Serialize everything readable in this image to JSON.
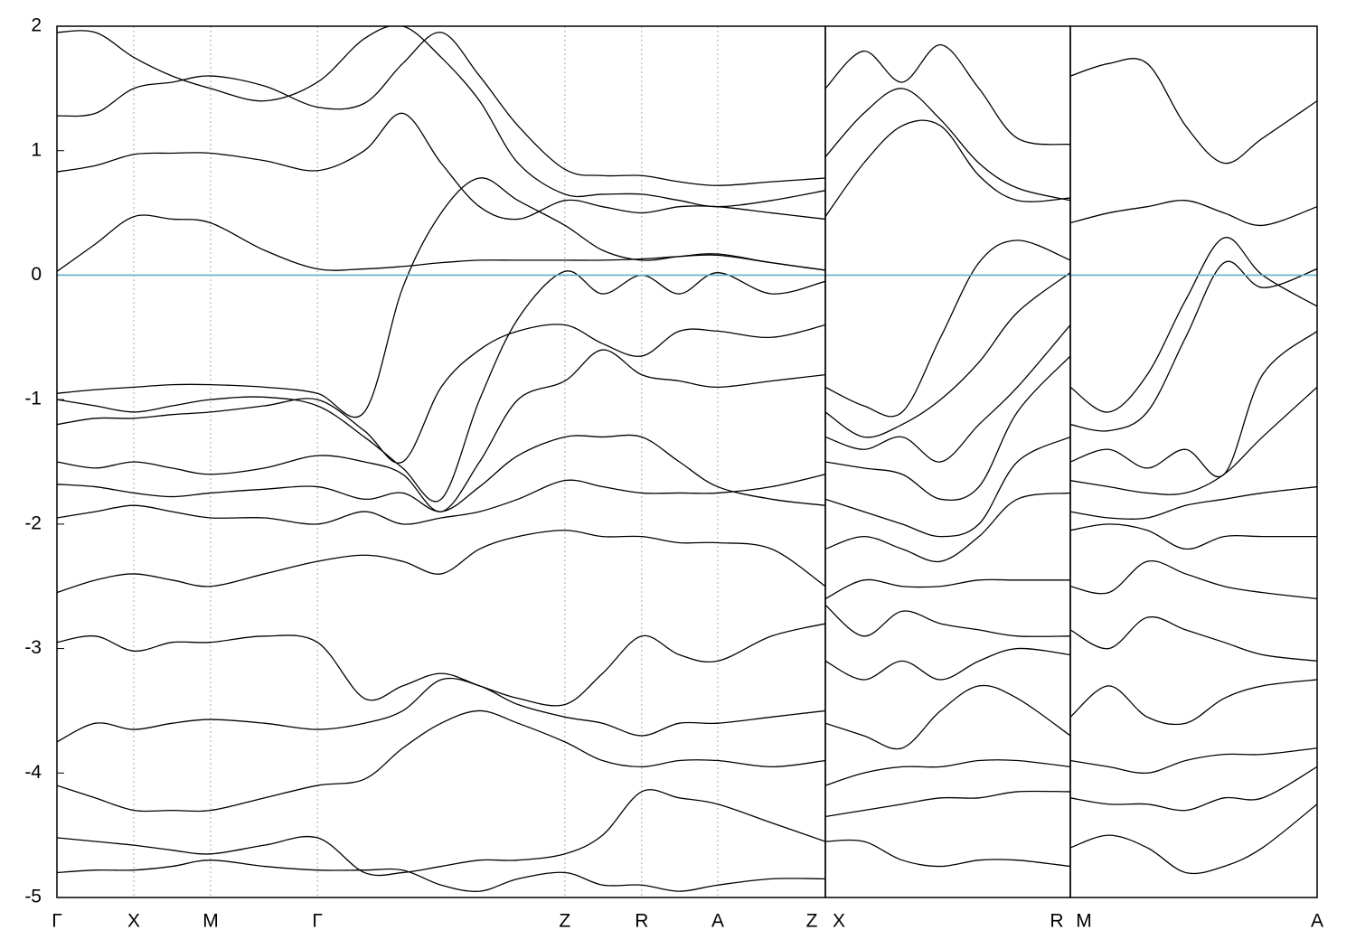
{
  "chart_data": [
    {
      "type": "line",
      "line_color": "#000000",
      "fermi_level": 0,
      "fermi_color": "#5fb3c8",
      "xgrid": true,
      "xlim": [
        0,
        10.0
      ],
      "ylim": [
        -5,
        2
      ],
      "yticks": [
        -5,
        -4,
        -3,
        -2,
        -1,
        0,
        1,
        2
      ],
      "xticks": [
        {
          "value": 0,
          "label": "Γ"
        },
        {
          "value": 1,
          "label": "X"
        },
        {
          "value": 2,
          "label": "M"
        },
        {
          "value": 3.39,
          "label": "Γ"
        },
        {
          "value": 6.61,
          "label": "Z"
        },
        {
          "value": 7.61,
          "label": "R"
        },
        {
          "value": 8.6,
          "label": "A"
        },
        {
          "value": 10.0,
          "label": "Z"
        }
      ],
      "x": [
        0,
        0.5,
        1,
        1.5,
        2,
        2.7,
        3.39,
        4,
        4.5,
        5,
        5.5,
        6,
        6.61,
        7.1,
        7.61,
        8.1,
        8.6,
        9.3,
        10
      ],
      "series": [
        {
          "values": [
            0.03,
            0.25,
            0.47,
            0.45,
            0.42,
            0.2,
            0.05,
            0.05,
            0.07,
            0.1,
            0.12,
            0.12,
            0.12,
            0.12,
            0.13,
            0.15,
            0.16,
            0.1,
            0.04
          ]
        },
        {
          "values": [
            0.83,
            0.88,
            0.97,
            0.98,
            0.98,
            0.92,
            0.84,
            1.0,
            1.3,
            0.9,
            0.55,
            0.45,
            0.6,
            0.55,
            0.5,
            0.55,
            0.55,
            0.5,
            0.45
          ]
        },
        {
          "values": [
            1.28,
            1.3,
            1.5,
            1.55,
            1.6,
            1.52,
            1.35,
            1.38,
            1.7,
            1.95,
            1.6,
            1.2,
            0.85,
            0.8,
            0.8,
            0.75,
            0.72,
            0.75,
            0.78
          ]
        },
        {
          "values": [
            1.95,
            1.95,
            1.75,
            1.6,
            1.5,
            1.4,
            1.55,
            1.9,
            2.0,
            1.75,
            1.4,
            0.9,
            0.65,
            0.65,
            0.65,
            0.6,
            0.55,
            0.6,
            0.68
          ]
        },
        {
          "values": [
            -0.95,
            -0.92,
            -0.9,
            -0.88,
            -0.88,
            -0.9,
            -0.95,
            -1.1,
            -0.1,
            0.5,
            0.78,
            0.6,
            0.4,
            0.2,
            0.12,
            0.15,
            0.17,
            0.1,
            0.04
          ]
        },
        {
          "values": [
            -1.2,
            -1.15,
            -1.15,
            -1.12,
            -1.1,
            -1.05,
            -1.0,
            -1.25,
            -1.5,
            -0.9,
            -0.6,
            -0.45,
            -0.4,
            -0.55,
            -0.65,
            -0.45,
            -0.45,
            -0.5,
            -0.4
          ]
        },
        {
          "values": [
            -1.0,
            -1.05,
            -1.1,
            -1.05,
            -1.0,
            -0.98,
            -1.05,
            -1.3,
            -1.55,
            -1.8,
            -1.0,
            -0.35,
            0.03,
            -0.15,
            0.0,
            -0.15,
            0.02,
            -0.15,
            -0.05
          ]
        },
        {
          "values": [
            -1.5,
            -1.55,
            -1.5,
            -1.55,
            -1.6,
            -1.55,
            -1.45,
            -1.5,
            -1.6,
            -1.9,
            -1.5,
            -1.0,
            -0.85,
            -0.6,
            -0.8,
            -0.85,
            -0.9,
            -0.85,
            -0.8
          ]
        },
        {
          "values": [
            -1.68,
            -1.7,
            -1.75,
            -1.78,
            -1.75,
            -1.72,
            -1.7,
            -1.8,
            -1.75,
            -1.9,
            -1.7,
            -1.45,
            -1.3,
            -1.3,
            -1.3,
            -1.5,
            -1.7,
            -1.8,
            -1.85
          ]
        },
        {
          "values": [
            -1.95,
            -1.9,
            -1.85,
            -1.9,
            -1.95,
            -1.95,
            -2.0,
            -1.9,
            -2.0,
            -1.95,
            -1.9,
            -1.8,
            -1.65,
            -1.7,
            -1.75,
            -1.75,
            -1.75,
            -1.7,
            -1.6
          ]
        },
        {
          "values": [
            -2.55,
            -2.45,
            -2.4,
            -2.45,
            -2.5,
            -2.4,
            -2.3,
            -2.25,
            -2.3,
            -2.4,
            -2.2,
            -2.1,
            -2.05,
            -2.1,
            -2.1,
            -2.15,
            -2.15,
            -2.2,
            -2.5
          ]
        },
        {
          "values": [
            -2.95,
            -2.9,
            -3.02,
            -2.95,
            -2.95,
            -2.9,
            -2.95,
            -3.4,
            -3.3,
            -3.2,
            -3.3,
            -3.4,
            -3.45,
            -3.2,
            -2.9,
            -3.05,
            -3.1,
            -2.9,
            -2.8
          ]
        },
        {
          "values": [
            -3.75,
            -3.6,
            -3.65,
            -3.6,
            -3.57,
            -3.6,
            -3.65,
            -3.6,
            -3.5,
            -3.25,
            -3.3,
            -3.45,
            -3.55,
            -3.6,
            -3.7,
            -3.6,
            -3.6,
            -3.55,
            -3.5
          ]
        },
        {
          "values": [
            -4.1,
            -4.2,
            -4.3,
            -4.3,
            -4.3,
            -4.2,
            -4.1,
            -4.05,
            -3.8,
            -3.6,
            -3.5,
            -3.6,
            -3.75,
            -3.9,
            -3.95,
            -3.9,
            -3.9,
            -3.95,
            -3.9
          ]
        },
        {
          "values": [
            -4.52,
            -4.55,
            -4.58,
            -4.62,
            -4.65,
            -4.58,
            -4.52,
            -4.8,
            -4.8,
            -4.75,
            -4.7,
            -4.7,
            -4.65,
            -4.5,
            -4.15,
            -4.2,
            -4.25,
            -4.4,
            -4.55
          ]
        },
        {
          "values": [
            -4.8,
            -4.78,
            -4.78,
            -4.75,
            -4.7,
            -4.75,
            -4.78,
            -4.78,
            -4.78,
            -4.9,
            -4.95,
            -4.85,
            -4.8,
            -4.9,
            -4.9,
            -4.95,
            -4.9,
            -4.85,
            -4.85
          ]
        }
      ]
    },
    {
      "type": "line",
      "line_color": "#000000",
      "fermi_level": 0,
      "fermi_color": "#5fb3c8",
      "xgrid": true,
      "xlim": [
        0,
        3.19
      ],
      "ylim": [
        -5,
        2
      ],
      "xticks": [
        {
          "value": 0,
          "label": "X"
        },
        {
          "value": 3.19,
          "label": "R"
        }
      ],
      "x": [
        0,
        0.5,
        1,
        1.5,
        2,
        2.5,
        3.19
      ],
      "series": [
        {
          "values": [
            1.5,
            1.8,
            1.55,
            1.85,
            1.5,
            1.1,
            1.05
          ]
        },
        {
          "values": [
            0.95,
            1.3,
            1.5,
            1.25,
            0.9,
            0.7,
            0.6
          ]
        },
        {
          "values": [
            0.47,
            0.9,
            1.2,
            1.2,
            0.8,
            0.6,
            0.62
          ]
        },
        {
          "values": [
            -0.9,
            -1.05,
            -1.1,
            -0.5,
            0.1,
            0.28,
            0.12
          ]
        },
        {
          "values": [
            -1.1,
            -1.3,
            -1.2,
            -1.0,
            -0.7,
            -0.3,
            0.02
          ]
        },
        {
          "values": [
            -1.3,
            -1.4,
            -1.3,
            -1.5,
            -1.2,
            -0.9,
            -0.4
          ]
        },
        {
          "values": [
            -1.5,
            -1.55,
            -1.6,
            -1.8,
            -1.7,
            -1.1,
            -0.65
          ]
        },
        {
          "values": [
            -1.8,
            -1.9,
            -2.0,
            -2.1,
            -2.0,
            -1.5,
            -1.3
          ]
        },
        {
          "values": [
            -2.2,
            -2.1,
            -2.2,
            -2.3,
            -2.1,
            -1.8,
            -1.75
          ]
        },
        {
          "values": [
            -2.6,
            -2.45,
            -2.5,
            -2.5,
            -2.45,
            -2.45,
            -2.45
          ]
        },
        {
          "values": [
            -2.65,
            -2.9,
            -2.7,
            -2.8,
            -2.85,
            -2.9,
            -2.9
          ]
        },
        {
          "values": [
            -3.1,
            -3.25,
            -3.1,
            -3.25,
            -3.1,
            -3.0,
            -3.05
          ]
        },
        {
          "values": [
            -3.6,
            -3.7,
            -3.8,
            -3.5,
            -3.3,
            -3.4,
            -3.7
          ]
        },
        {
          "values": [
            -4.1,
            -4.0,
            -3.95,
            -3.95,
            -3.9,
            -3.9,
            -3.95
          ]
        },
        {
          "values": [
            -4.35,
            -4.3,
            -4.25,
            -4.2,
            -4.2,
            -4.15,
            -4.15
          ]
        },
        {
          "values": [
            -4.55,
            -4.55,
            -4.7,
            -4.75,
            -4.7,
            -4.7,
            -4.75
          ]
        }
      ]
    },
    {
      "type": "line",
      "line_color": "#000000",
      "fermi_level": 0,
      "fermi_color": "#5fb3c8",
      "xgrid": true,
      "xlim": [
        0,
        3.21
      ],
      "ylim": [
        -5,
        2
      ],
      "xticks": [
        {
          "value": 0,
          "label": "M"
        },
        {
          "value": 3.21,
          "label": "A"
        }
      ],
      "x": [
        0,
        0.5,
        1,
        1.5,
        2,
        2.5,
        3.21
      ],
      "series": [
        {
          "values": [
            1.6,
            1.7,
            1.7,
            1.2,
            0.9,
            1.1,
            1.4
          ]
        },
        {
          "values": [
            0.42,
            0.5,
            0.55,
            0.6,
            0.5,
            0.4,
            0.55
          ]
        },
        {
          "values": [
            -0.9,
            -1.1,
            -0.8,
            -0.2,
            0.3,
            0.0,
            -0.25
          ]
        },
        {
          "values": [
            -1.2,
            -1.25,
            -1.1,
            -0.5,
            0.1,
            -0.1,
            0.05
          ]
        },
        {
          "values": [
            -1.5,
            -1.4,
            -1.55,
            -1.4,
            -1.6,
            -0.8,
            -0.45
          ]
        },
        {
          "values": [
            -1.65,
            -1.7,
            -1.75,
            -1.75,
            -1.6,
            -1.3,
            -0.9
          ]
        },
        {
          "values": [
            -1.9,
            -1.95,
            -1.95,
            -1.85,
            -1.8,
            -1.75,
            -1.7
          ]
        },
        {
          "values": [
            -2.05,
            -2.0,
            -2.05,
            -2.2,
            -2.1,
            -2.1,
            -2.1
          ]
        },
        {
          "values": [
            -2.5,
            -2.55,
            -2.3,
            -2.4,
            -2.5,
            -2.55,
            -2.6
          ]
        },
        {
          "values": [
            -2.85,
            -3.0,
            -2.75,
            -2.85,
            -2.95,
            -3.05,
            -3.1
          ]
        },
        {
          "values": [
            -3.55,
            -3.3,
            -3.55,
            -3.6,
            -3.4,
            -3.3,
            -3.25
          ]
        },
        {
          "values": [
            -3.9,
            -3.95,
            -4.0,
            -3.9,
            -3.85,
            -3.85,
            -3.8
          ]
        },
        {
          "values": [
            -4.2,
            -4.25,
            -4.25,
            -4.3,
            -4.2,
            -4.2,
            -3.95
          ]
        },
        {
          "values": [
            -4.6,
            -4.5,
            -4.6,
            -4.8,
            -4.75,
            -4.6,
            -4.25
          ]
        }
      ]
    }
  ]
}
